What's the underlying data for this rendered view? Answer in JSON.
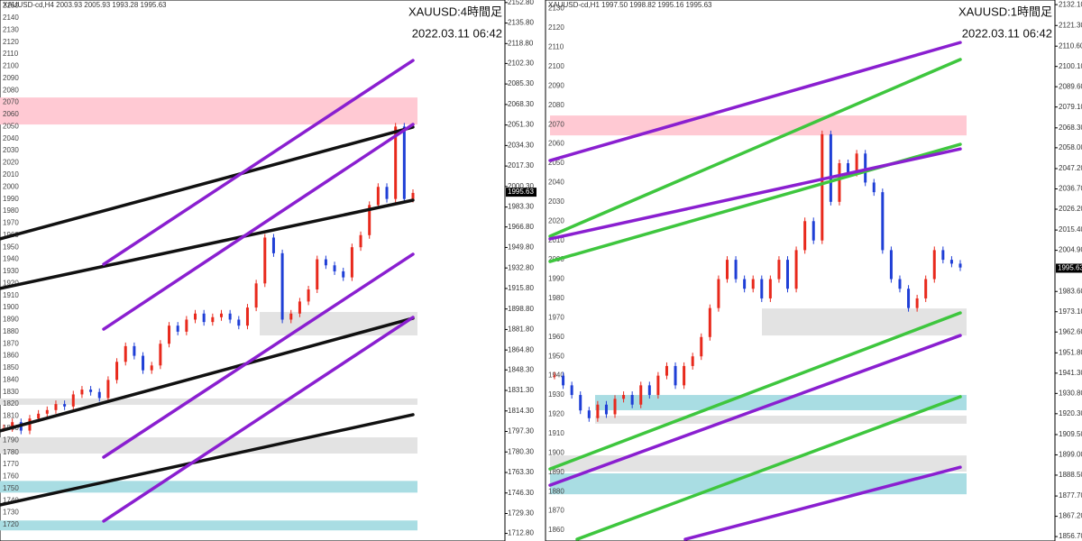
{
  "chart_data": [
    {
      "type": "candlestick",
      "header": "XAUUSD-cd,H4  2003.93 2005.93 1993.28 1995.63",
      "title": "XAUUSD:4時間足",
      "timestamp": "2022.03.11 06:42",
      "ylim": [
        1706.5,
        2154.9
      ],
      "up_color": "#e8291c",
      "down_color": "#1f3fd6",
      "closes": [
        1800,
        1805,
        1798,
        1808,
        1812,
        1815,
        1820,
        1818,
        1828,
        1832,
        1830,
        1825,
        1840,
        1855,
        1868,
        1860,
        1848,
        1852,
        1870,
        1885,
        1880,
        1890,
        1895,
        1888,
        1892,
        1895,
        1890,
        1885,
        1900,
        1920,
        1958,
        1945,
        1890,
        1895,
        1905,
        1915,
        1940,
        1935,
        1930,
        1925,
        1950,
        1960,
        1985,
        2000,
        1990,
        2050,
        1990,
        1995
      ],
      "last_price": 1995.63,
      "zones": [
        {
          "color": "#ffc9d3",
          "values": [
            2074.1,
            2051.7
          ]
        },
        {
          "color": "#e3e3e3",
          "values": [
            1896.3,
            1876.9
          ]
        },
        {
          "color": "#e3e3e3",
          "values": [
            1824.6,
            1819.4
          ]
        },
        {
          "color": "#e3e3e3",
          "values": [
            1792.4,
            1779.0
          ]
        },
        {
          "color": "#a9dde3",
          "values": [
            1756.3,
            1746.6
          ]
        },
        {
          "color": "#a9dde3",
          "values": [
            1723.5,
            1715.3
          ]
        }
      ],
      "lines": [
        {
          "color": "#111111",
          "values": [
            1956.9,
            2049.6
          ]
        },
        {
          "color": "#111111",
          "values": [
            1915.8,
            1989.0
          ]
        },
        {
          "color": "#111111",
          "values": [
            1797.7,
            1891.1
          ]
        },
        {
          "color": "#111111",
          "values": [
            1736.4,
            1811.2
          ]
        },
        {
          "color": "#8a1fd0",
          "values": [
            1935.9,
            2104.8
          ]
        },
        {
          "color": "#8a1fd0",
          "values": [
            1882.1,
            2051.8
          ]
        },
        {
          "color": "#8a1fd0",
          "values": [
            1776.0,
            1944.2
          ]
        },
        {
          "color": "#8a1fd0",
          "values": [
            1723.0,
            1891.9
          ]
        }
      ],
      "yticks": [
        2150,
        2140,
        2130,
        2120,
        2110,
        2100,
        2090,
        2080,
        2070,
        2060,
        2050,
        2040,
        2030,
        2020,
        2010,
        2000,
        1990,
        1980,
        1970,
        1960,
        1950,
        1940,
        1930,
        1920,
        1910,
        1900,
        1890,
        1880,
        1870,
        1860,
        1850,
        1840,
        1830,
        1820,
        1810,
        1800,
        1790,
        1780,
        1770,
        1760,
        1750,
        1740,
        1730,
        1720
      ],
      "y2ticks": [
        {
          "value": 2152.8,
          "label": "2152.80"
        },
        {
          "value": 2135.8,
          "label": "2135.80"
        },
        {
          "value": 2118.8,
          "label": "2118.80"
        },
        {
          "value": 2102.3,
          "label": "2102.30"
        },
        {
          "value": 2085.3,
          "label": "2085.30"
        },
        {
          "value": 2068.3,
          "label": "2068.30"
        },
        {
          "value": 2051.3,
          "label": "2051.30"
        },
        {
          "value": 2034.3,
          "label": "2034.30"
        },
        {
          "value": 2017.3,
          "label": "2017.30"
        },
        {
          "value": 2000.3,
          "label": "2000.30"
        },
        {
          "value": 1983.3,
          "label": "1983.30"
        },
        {
          "value": 1966.8,
          "label": "1966.80"
        },
        {
          "value": 1949.8,
          "label": "1949.80"
        },
        {
          "value": 1932.8,
          "label": "1932.80"
        },
        {
          "value": 1915.8,
          "label": "1915.80"
        },
        {
          "value": 1898.8,
          "label": "1898.80"
        },
        {
          "value": 1881.8,
          "label": "1881.80"
        },
        {
          "value": 1864.8,
          "label": "1864.80"
        },
        {
          "value": 1848.3,
          "label": "1848.30"
        },
        {
          "value": 1831.3,
          "label": "1831.30"
        },
        {
          "value": 1814.3,
          "label": "1814.30"
        },
        {
          "value": 1797.3,
          "label": "1797.30"
        },
        {
          "value": 1780.3,
          "label": "1780.30"
        },
        {
          "value": 1763.3,
          "label": "1763.30"
        },
        {
          "value": 1746.3,
          "label": "1746.30"
        },
        {
          "value": 1729.3,
          "label": "1729.30"
        },
        {
          "value": 1712.8,
          "label": "1712.80"
        }
      ]
    },
    {
      "type": "candlestick",
      "header": "XAUUSD-cd,H1  1997.50 1998.82 1995.16 1995.63",
      "title": "XAUUSD:1時間足",
      "timestamp": "2022.03.11 06:42",
      "ylim": [
        1854.4,
        2134.5
      ],
      "up_color": "#e8291c",
      "down_color": "#1f3fd6",
      "closes": [
        1940,
        1935,
        1930,
        1922,
        1918,
        1925,
        1920,
        1928,
        1930,
        1925,
        1935,
        1930,
        1940,
        1945,
        1935,
        1945,
        1950,
        1960,
        1975,
        1990,
        2000,
        1990,
        1985,
        1990,
        1980,
        1990,
        2000,
        1985,
        2005,
        2020,
        2010,
        2065,
        2030,
        2050,
        2045,
        2055,
        2040,
        2035,
        2005,
        1990,
        1985,
        1975,
        1980,
        1990,
        2005,
        2000,
        1998,
        1996
      ],
      "last_price": 1995.63,
      "zones": [
        {
          "color": "#ffc9d3",
          "values": [
            2074.7,
            2064.4
          ]
        },
        {
          "color": "#e3e3e3",
          "values": [
            1974.8,
            1960.8
          ]
        },
        {
          "color": "#a9dde3",
          "values": [
            1930.0,
            1922.1
          ]
        },
        {
          "color": "#e3e3e3",
          "values": [
            1919.3,
            1915.1
          ]
        },
        {
          "color": "#e3e3e3",
          "values": [
            1898.7,
            1890.3
          ]
        },
        {
          "color": "#a9dde3",
          "values": [
            1889.4,
            1878.6
          ]
        }
      ],
      "lines": [
        {
          "color": "#8a1fd0",
          "values": [
            2051.4,
            2112.5
          ]
        },
        {
          "color": "#3ec63e",
          "values": [
            2012.2,
            2103.7
          ]
        },
        {
          "color": "#3ec63e",
          "values": [
            1999.1,
            2059.8
          ]
        },
        {
          "color": "#8a1fd0",
          "values": [
            2010.8,
            2057.4
          ]
        },
        {
          "color": "#8a1fd0",
          "values": [
            1883.3,
            1960.8
          ]
        },
        {
          "color": "#3ec63e",
          "values": [
            1891.7,
            1972.5
          ]
        },
        {
          "color": "#3ec63e",
          "values": [
            1855.3,
            1929.1
          ]
        },
        {
          "color": "#8a1fd0",
          "values": [
            1855.3,
            1892.6
          ]
        }
      ],
      "yticks": [
        2130,
        2120,
        2110,
        2100,
        2090,
        2080,
        2070,
        2060,
        2050,
        2040,
        2030,
        2020,
        2010,
        2000,
        1990,
        1980,
        1970,
        1960,
        1950,
        1940,
        1930,
        1920,
        1910,
        1900,
        1890,
        1880,
        1870,
        1860
      ],
      "y2ticks": [
        {
          "value": 2132.1,
          "label": "2132.10"
        },
        {
          "value": 2121.3,
          "label": "2121.30"
        },
        {
          "value": 2110.6,
          "label": "2110.60"
        },
        {
          "value": 2100.1,
          "label": "2100.10"
        },
        {
          "value": 2089.6,
          "label": "2089.60"
        },
        {
          "value": 2079.1,
          "label": "2079.10"
        },
        {
          "value": 2068.3,
          "label": "2068.30"
        },
        {
          "value": 2058,
          "label": "2058.00"
        },
        {
          "value": 2047.2,
          "label": "2047.20"
        },
        {
          "value": 2036.7,
          "label": "2036.70"
        },
        {
          "value": 2026.2,
          "label": "2026.20"
        },
        {
          "value": 2015.4,
          "label": "2015.40"
        },
        {
          "value": 2004.9,
          "label": "2004.90"
        },
        {
          "value": 1983.6,
          "label": "1983.60"
        },
        {
          "value": 1973.1,
          "label": "1973.10"
        },
        {
          "value": 1962.6,
          "label": "1962.60"
        },
        {
          "value": 1951.8,
          "label": "1951.80"
        },
        {
          "value": 1941.3,
          "label": "1941.30"
        },
        {
          "value": 1930.8,
          "label": "1930.80"
        },
        {
          "value": 1920.3,
          "label": "1920.30"
        },
        {
          "value": 1909.5,
          "label": "1909.50"
        },
        {
          "value": 1899,
          "label": "1899.00"
        },
        {
          "value": 1888.5,
          "label": "1888.50"
        },
        {
          "value": 1877.7,
          "label": "1877.70"
        },
        {
          "value": 1867.2,
          "label": "1867.20"
        },
        {
          "value": 1856.7,
          "label": "1856.70"
        }
      ]
    }
  ]
}
